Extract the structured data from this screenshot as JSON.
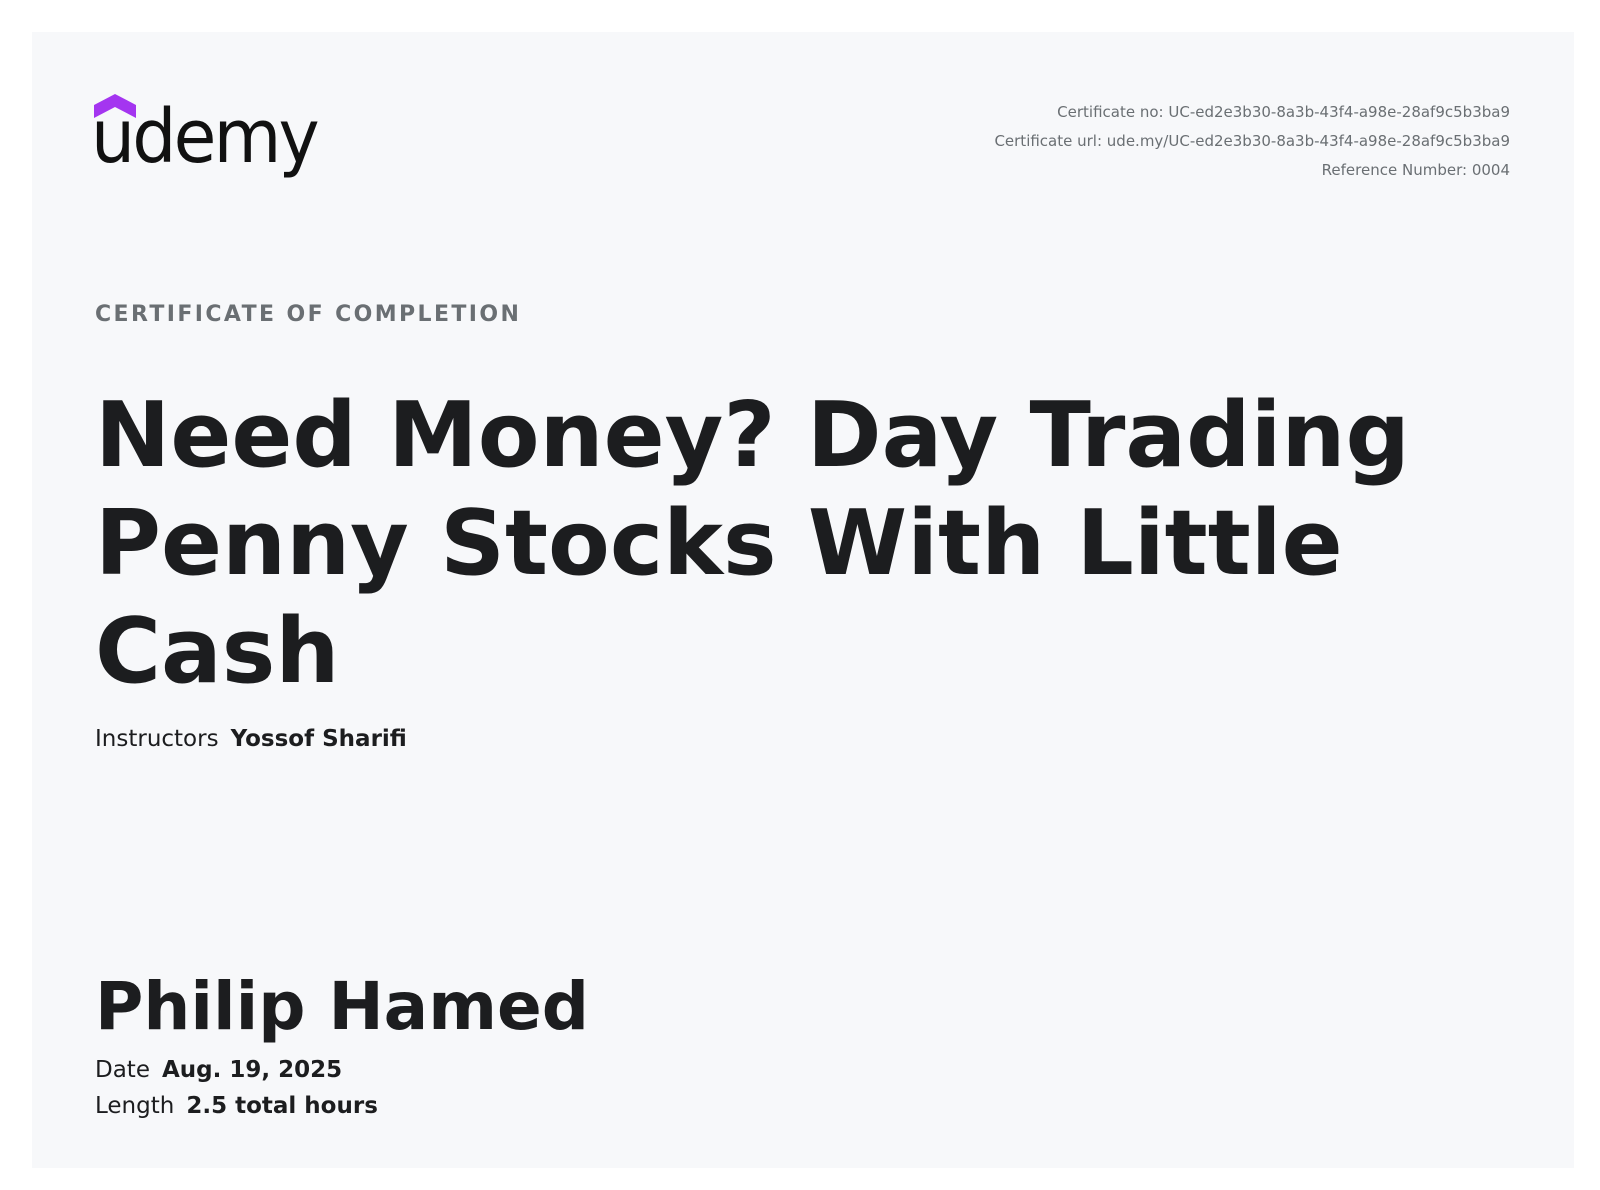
{
  "brand": {
    "name": "udemy",
    "logo_icon": "udemy-chevron-icon",
    "accent_color": "#a435f0"
  },
  "certificate": {
    "number_label": "Certificate no:",
    "number_value": "UC-ed2e3b30-8a3b-43f4-a98e-28af9c5b3ba9",
    "url_label": "Certificate url:",
    "url_value": "ude.my/UC-ed2e3b30-8a3b-43f4-a98e-28af9c5b3ba9",
    "reference_label": "Reference Number:",
    "reference_value": "0004",
    "heading": "CERTIFICATE OF COMPLETION",
    "course_title": "Need Money? Day Trading Penny Stocks With Little Cash",
    "instructors_label": "Instructors",
    "instructors_value": "Yossof Sharifi",
    "student_name": "Philip Hamed",
    "date_label": "Date",
    "date_value": "Aug. 19, 2025",
    "length_label": "Length",
    "length_value": "2.5 total hours"
  }
}
